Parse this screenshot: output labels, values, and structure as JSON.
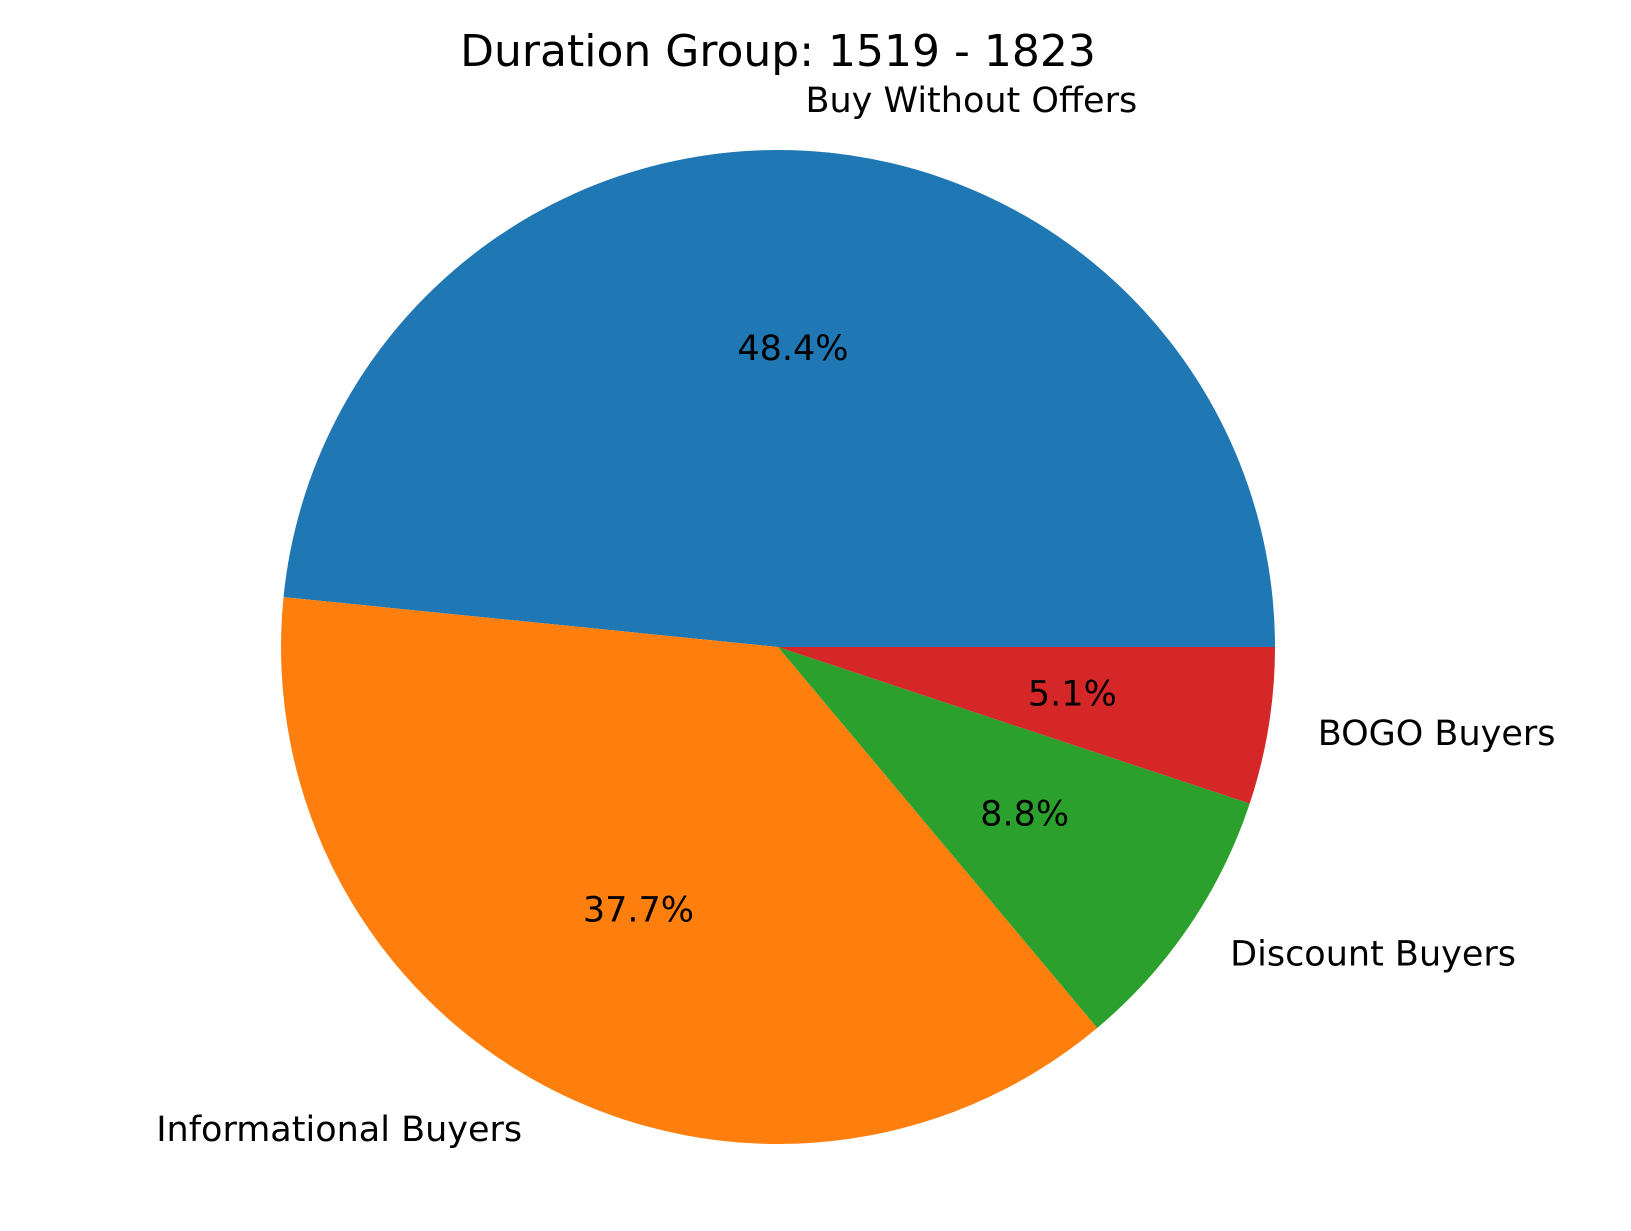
{
  "chart_data": {
    "type": "pie",
    "title": "Duration Group: 1519 - 1823",
    "slices": [
      {
        "label": "Buy Without Offers",
        "value": 48.4,
        "pct_label": "48.4%",
        "color": "#1f77b4"
      },
      {
        "label": "Informational Buyers",
        "value": 37.7,
        "pct_label": "37.7%",
        "color": "#ff7f0e"
      },
      {
        "label": "Discount Buyers",
        "value": 8.8,
        "pct_label": "8.8%",
        "color": "#2ca02c"
      },
      {
        "label": "BOGO Buyers",
        "value": 5.1,
        "pct_label": "5.1%",
        "color": "#d62728"
      }
    ]
  }
}
